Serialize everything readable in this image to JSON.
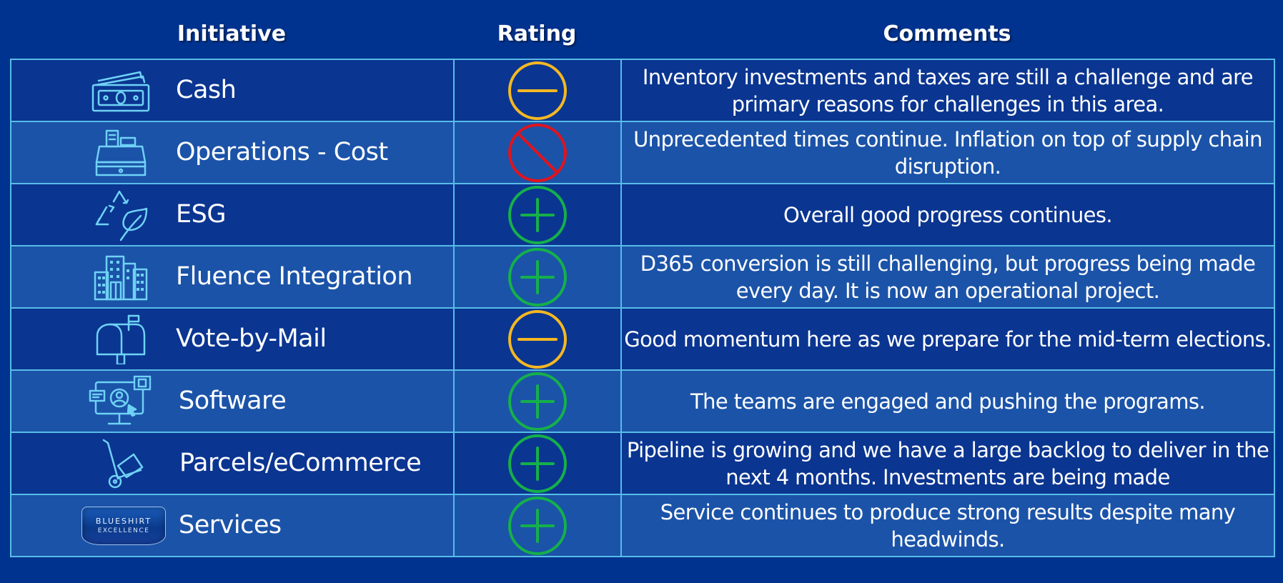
{
  "headers": {
    "initiative": "Initiative",
    "rating": "Rating",
    "comments": "Comments"
  },
  "colors": {
    "background": "#00338f",
    "row_odd": "#0a3591",
    "row_even": "#1b53a8",
    "border": "#58bde6",
    "icon": "#6fd2f5",
    "rating_neutral": "#f4b822",
    "rating_negative": "#e0141e",
    "rating_positive": "#15b04a"
  },
  "rows": [
    {
      "initiative": "Cash",
      "icon": "cash-icon",
      "rating": "neutral",
      "comment": "Inventory investments and taxes are still a challenge and are primary reasons for challenges in this area."
    },
    {
      "initiative": "Operations - Cost",
      "icon": "cash-register-icon",
      "rating": "negative",
      "comment": "Unprecedented times continue.  Inflation on top of supply chain disruption."
    },
    {
      "initiative": "ESG",
      "icon": "recycle-leaf-icon",
      "rating": "positive",
      "comment": "Overall good progress continues."
    },
    {
      "initiative": "Fluence Integration",
      "icon": "buildings-icon",
      "rating": "positive",
      "comment": "D365 conversion is still challenging, but progress being made every day.  It is now an operational project."
    },
    {
      "initiative": "Vote-by-Mail",
      "icon": "mailbox-icon",
      "rating": "neutral",
      "comment": "Good momentum here as we prepare for the mid-term elections."
    },
    {
      "initiative": "Software",
      "icon": "computer-user-icon",
      "rating": "positive",
      "comment": "The teams are engaged and pushing the programs."
    },
    {
      "initiative": "Parcels/eCommerce",
      "icon": "hand-truck-icon",
      "rating": "positive",
      "comment": "Pipeline is growing and we have a large backlog to deliver in the next 4 months.  Investments are being made"
    },
    {
      "initiative": "Services",
      "icon": "blueshirt-badge-icon",
      "badge_top": "BLUESHIRT",
      "badge_bottom": "EXCELLENCE",
      "rating": "positive",
      "comment": "Service continues to produce strong results despite many headwinds."
    }
  ]
}
